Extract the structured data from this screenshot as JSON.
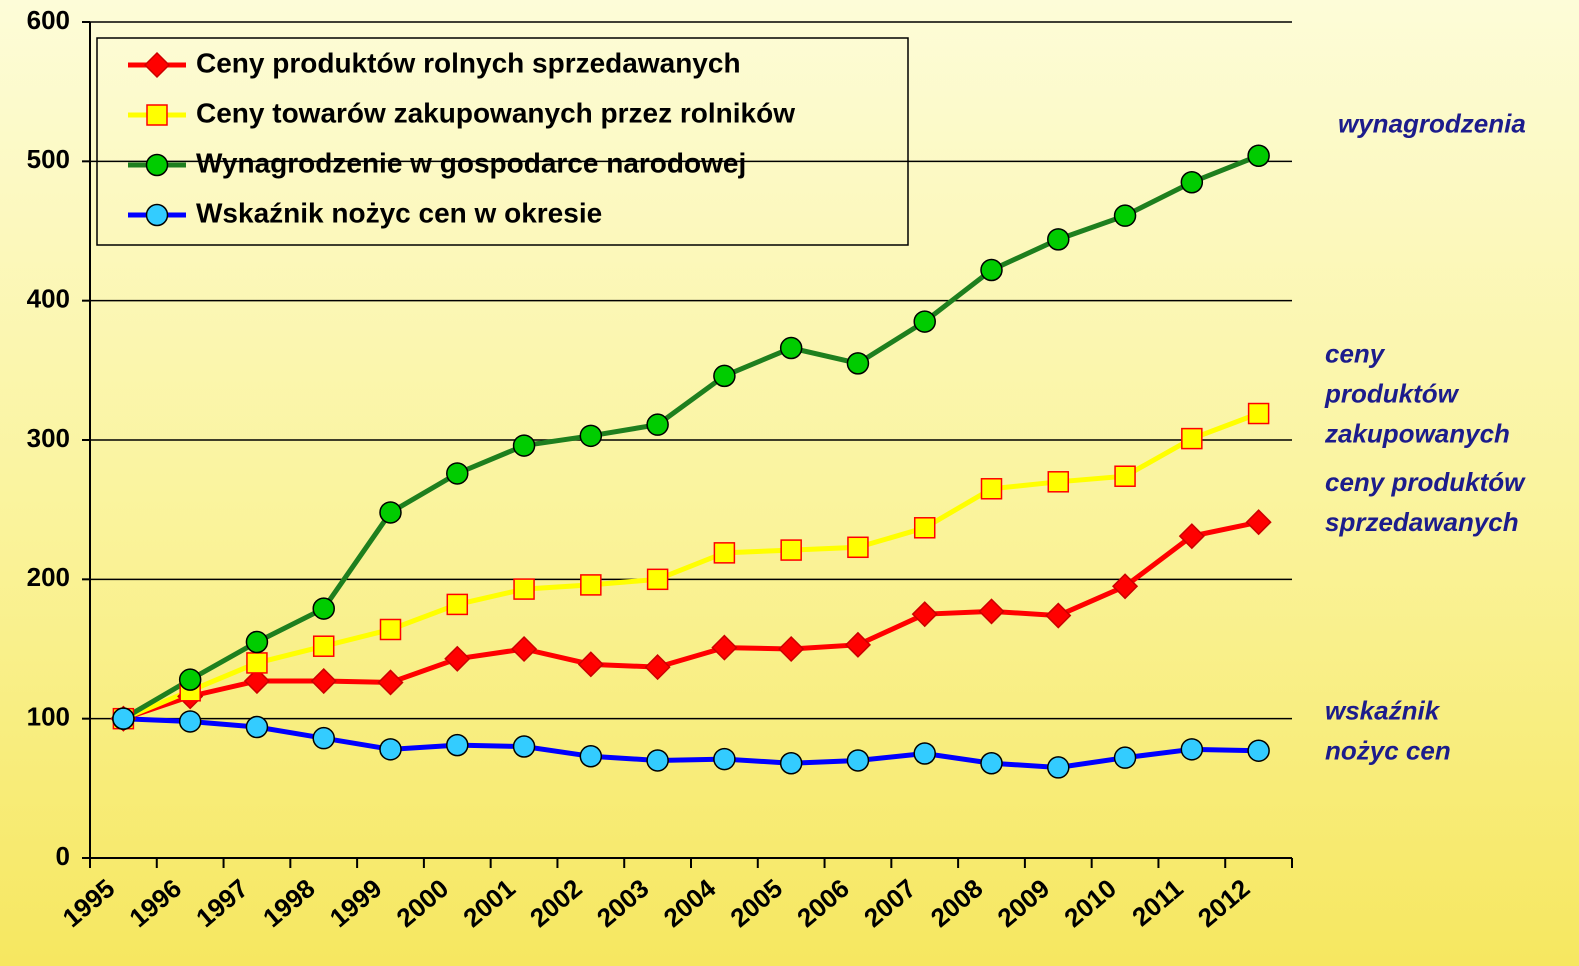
{
  "chart_data": {
    "type": "line",
    "categories": [
      "1995",
      "1996",
      "1997",
      "1998",
      "1999",
      "2000",
      "2001",
      "2002",
      "2003",
      "2004",
      "2005",
      "2006",
      "2007",
      "2008",
      "2009",
      "2010",
      "2011",
      "2012"
    ],
    "series": [
      {
        "name": "Ceny produktów rolnych sprzedawanych",
        "color": "#ff0000",
        "marker": "diamond",
        "marker_fill": "#ff0000",
        "marker_stroke": "#cc0000",
        "values": [
          100,
          116,
          127,
          127,
          126,
          143,
          150,
          139,
          137,
          151,
          150,
          153,
          175,
          177,
          174,
          195,
          231,
          241
        ]
      },
      {
        "name": "Ceny towarów zakupowanych przez rolników",
        "color": "#ffff00",
        "marker": "square",
        "marker_fill": "#ffff00",
        "marker_stroke": "#ff0000",
        "values": [
          100,
          120,
          140,
          152,
          164,
          182,
          193,
          196,
          200,
          219,
          221,
          223,
          237,
          265,
          270,
          274,
          301,
          319
        ]
      },
      {
        "name": "Wynagrodzenie w gospodarce narodowej",
        "color": "#1e7f1e",
        "marker": "circle",
        "marker_fill": "#00cc00",
        "marker_stroke": "#000000",
        "values": [
          100,
          128,
          155,
          179,
          248,
          276,
          296,
          303,
          311,
          346,
          366,
          355,
          385,
          422,
          444,
          461,
          485,
          504
        ]
      },
      {
        "name": "Wskaźnik nożyc cen w okresie",
        "color": "#0000ff",
        "marker": "circle",
        "marker_fill": "#33ccff",
        "marker_stroke": "#000000",
        "values": [
          100,
          98,
          94,
          86,
          78,
          81,
          80,
          73,
          70,
          71,
          68,
          70,
          75,
          68,
          65,
          72,
          78,
          77
        ]
      }
    ],
    "ylim": [
      0,
      600
    ],
    "yticks": [
      0,
      100,
      200,
      300,
      400,
      500,
      600
    ],
    "grid": true,
    "legend": "upper left",
    "annotations": [
      {
        "lines": [
          "wynagrodzenia"
        ],
        "y": 504
      },
      {
        "lines": [
          "ceny",
          "produktów",
          "zakupowanych"
        ],
        "y": 319
      },
      {
        "lines": [
          "ceny produktów",
          "sprzedawanych"
        ],
        "y": 241
      },
      {
        "lines": [
          "wskaźnik",
          "nożyc cen"
        ],
        "y": 77
      }
    ]
  }
}
